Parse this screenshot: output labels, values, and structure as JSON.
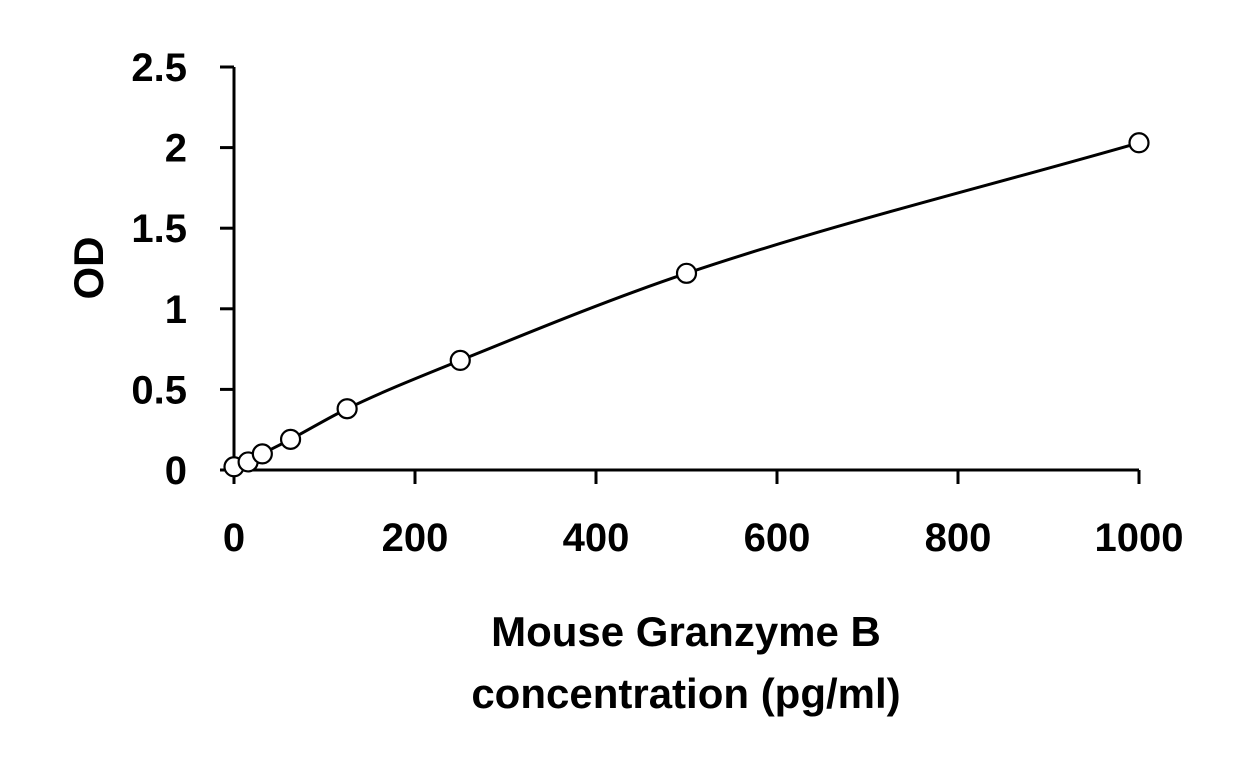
{
  "chart_data": {
    "type": "scatter",
    "title": "",
    "xlabel_lines": [
      "Mouse Granzyme B",
      "concentration (pg/ml)"
    ],
    "ylabel": "OD",
    "xlim": [
      0,
      1000
    ],
    "ylim": [
      0,
      2.5
    ],
    "x_ticks": [
      0,
      200,
      400,
      600,
      800,
      1000
    ],
    "y_ticks": [
      0,
      0.5,
      1,
      1.5,
      2,
      2.5
    ],
    "x_tick_labels": [
      "0",
      "200",
      "400",
      "600",
      "800",
      "1000"
    ],
    "y_tick_labels": [
      "0",
      "0.5",
      "1",
      "1.5",
      "2",
      "2.5"
    ],
    "grid": false,
    "legend": "none",
    "series": [
      {
        "points": [
          {
            "x": 0,
            "y": 0.02
          },
          {
            "x": 15.6,
            "y": 0.05
          },
          {
            "x": 31.3,
            "y": 0.1
          },
          {
            "x": 62.5,
            "y": 0.19
          },
          {
            "x": 125,
            "y": 0.38
          },
          {
            "x": 250,
            "y": 0.68
          },
          {
            "x": 500,
            "y": 1.22
          },
          {
            "x": 1000,
            "y": 2.03
          }
        ],
        "fit": "smooth-curve"
      }
    ]
  }
}
